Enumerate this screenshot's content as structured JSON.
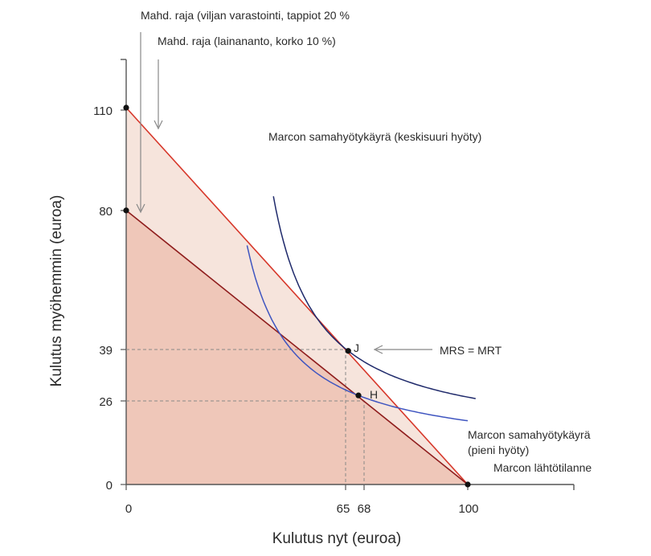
{
  "chart_data": {
    "type": "diagram",
    "xlabel": "Kulutus nyt (euroa)",
    "ylabel": "Kulutus myöhemmin (euroa)",
    "xlim": [
      0,
      131
    ],
    "ylim": [
      0,
      124
    ],
    "x_ticks": [
      {
        "value": 0,
        "label": "0"
      },
      {
        "value": 65,
        "label": "65"
      },
      {
        "value": 68,
        "label": "68"
      },
      {
        "value": 100,
        "label": "100"
      }
    ],
    "y_ticks": [
      {
        "value": 0,
        "label": "0"
      },
      {
        "value": 26,
        "label": "26"
      },
      {
        "value": 39,
        "label": "39"
      },
      {
        "value": 80,
        "label": "80"
      },
      {
        "value": 110,
        "label": "110"
      }
    ],
    "constraints": [
      {
        "name": "lending",
        "label": "Mahd. raja (lainananto, korko 10 %)",
        "start": [
          0,
          110
        ],
        "end": [
          100,
          0
        ],
        "color": "#d7372a",
        "fill": "#f6e4dc"
      },
      {
        "name": "storage",
        "label": "Mahd. raja (viljan varastointi, tappiot 20 %",
        "start": [
          0,
          80
        ],
        "end": [
          100,
          0
        ],
        "color": "#8f1d1d",
        "fill": "#efc7b9"
      }
    ],
    "points": [
      {
        "name": "J",
        "label": "J",
        "x": 65,
        "y": 39
      },
      {
        "name": "H",
        "label": "H",
        "x": 68,
        "y": 26
      },
      {
        "name": "endowment",
        "label": "Marcon lähtötilanne",
        "x": 100,
        "y": 0
      },
      {
        "name": "y110",
        "label": "",
        "x": 0,
        "y": 110
      },
      {
        "name": "y80",
        "label": "",
        "x": 0,
        "y": 80
      }
    ],
    "indifference_curves": [
      {
        "name": "medium",
        "label": "Marcon samahyötykäyrä (keskisuuri hyöty)",
        "color": "#1f2a6b",
        "x_range": [
          43.1,
          102.3
        ]
      },
      {
        "name": "small",
        "label": "Marcon samahyötykäyrä (pieni hyöty)",
        "color": "#3f55c0",
        "x_range": [
          35.4,
          100
        ]
      }
    ],
    "annotations": {
      "mrs_mrt": "MRS = MRT",
      "small_curve_line1": "Marcon samahyötykäyrä",
      "small_curve_line2": "(pieni hyöty)"
    }
  }
}
